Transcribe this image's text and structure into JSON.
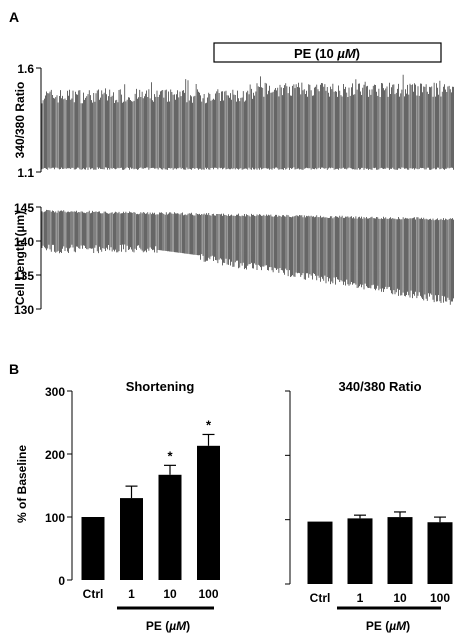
{
  "panel_a": {
    "label": "A",
    "treatment_bar_label": "PE (10 µM)",
    "treatment_bar_text_main": "PE (10 ",
    "treatment_bar_text_unit": "µM",
    "treatment_bar_text_close": ")"
  },
  "panel_b": {
    "label": "B",
    "xaxis_caption_main": "PE (",
    "xaxis_caption_unit": "µM",
    "xaxis_caption_close": ")"
  },
  "chart_data": [
    {
      "id": "ratio-trace",
      "type": "line",
      "ylabel": "340/380 Ratio",
      "ylim": [
        1.1,
        1.6
      ],
      "yticks": [
        "1.6",
        "1.1"
      ],
      "treatment_fraction_start": 0.52,
      "description_values": {
        "baseline_min": 1.1,
        "baseline_peak": 1.5,
        "pe_peak": 1.55
      }
    },
    {
      "id": "length-trace",
      "type": "line",
      "ylabel": "Cell Length (µm)",
      "ylim": [
        130,
        145
      ],
      "yticks": [
        "145",
        "140",
        "135",
        "130"
      ],
      "description_values": {
        "start_rest": 144.5,
        "start_min": 139,
        "end_rest": 143.5,
        "end_min": 131
      }
    },
    {
      "id": "shortening-bars",
      "type": "bar",
      "title": "Shortening",
      "ylabel": "% of Baseline",
      "ylim": [
        0,
        300
      ],
      "yticks": [
        "300",
        "200",
        "100",
        "0"
      ],
      "categories": [
        "Ctrl",
        "1",
        "10",
        "100"
      ],
      "values": [
        100,
        130,
        167,
        213
      ],
      "errors": [
        0,
        19,
        15,
        18
      ],
      "significance": [
        "",
        "",
        "*",
        "*"
      ]
    },
    {
      "id": "ratio-bars",
      "type": "bar",
      "title": "340/380 Ratio",
      "ylim": [
        0,
        300
      ],
      "categories": [
        "Ctrl",
        "1",
        "10",
        "100"
      ],
      "values": [
        97,
        102,
        104,
        96
      ],
      "errors": [
        0,
        5,
        8,
        8
      ]
    }
  ]
}
